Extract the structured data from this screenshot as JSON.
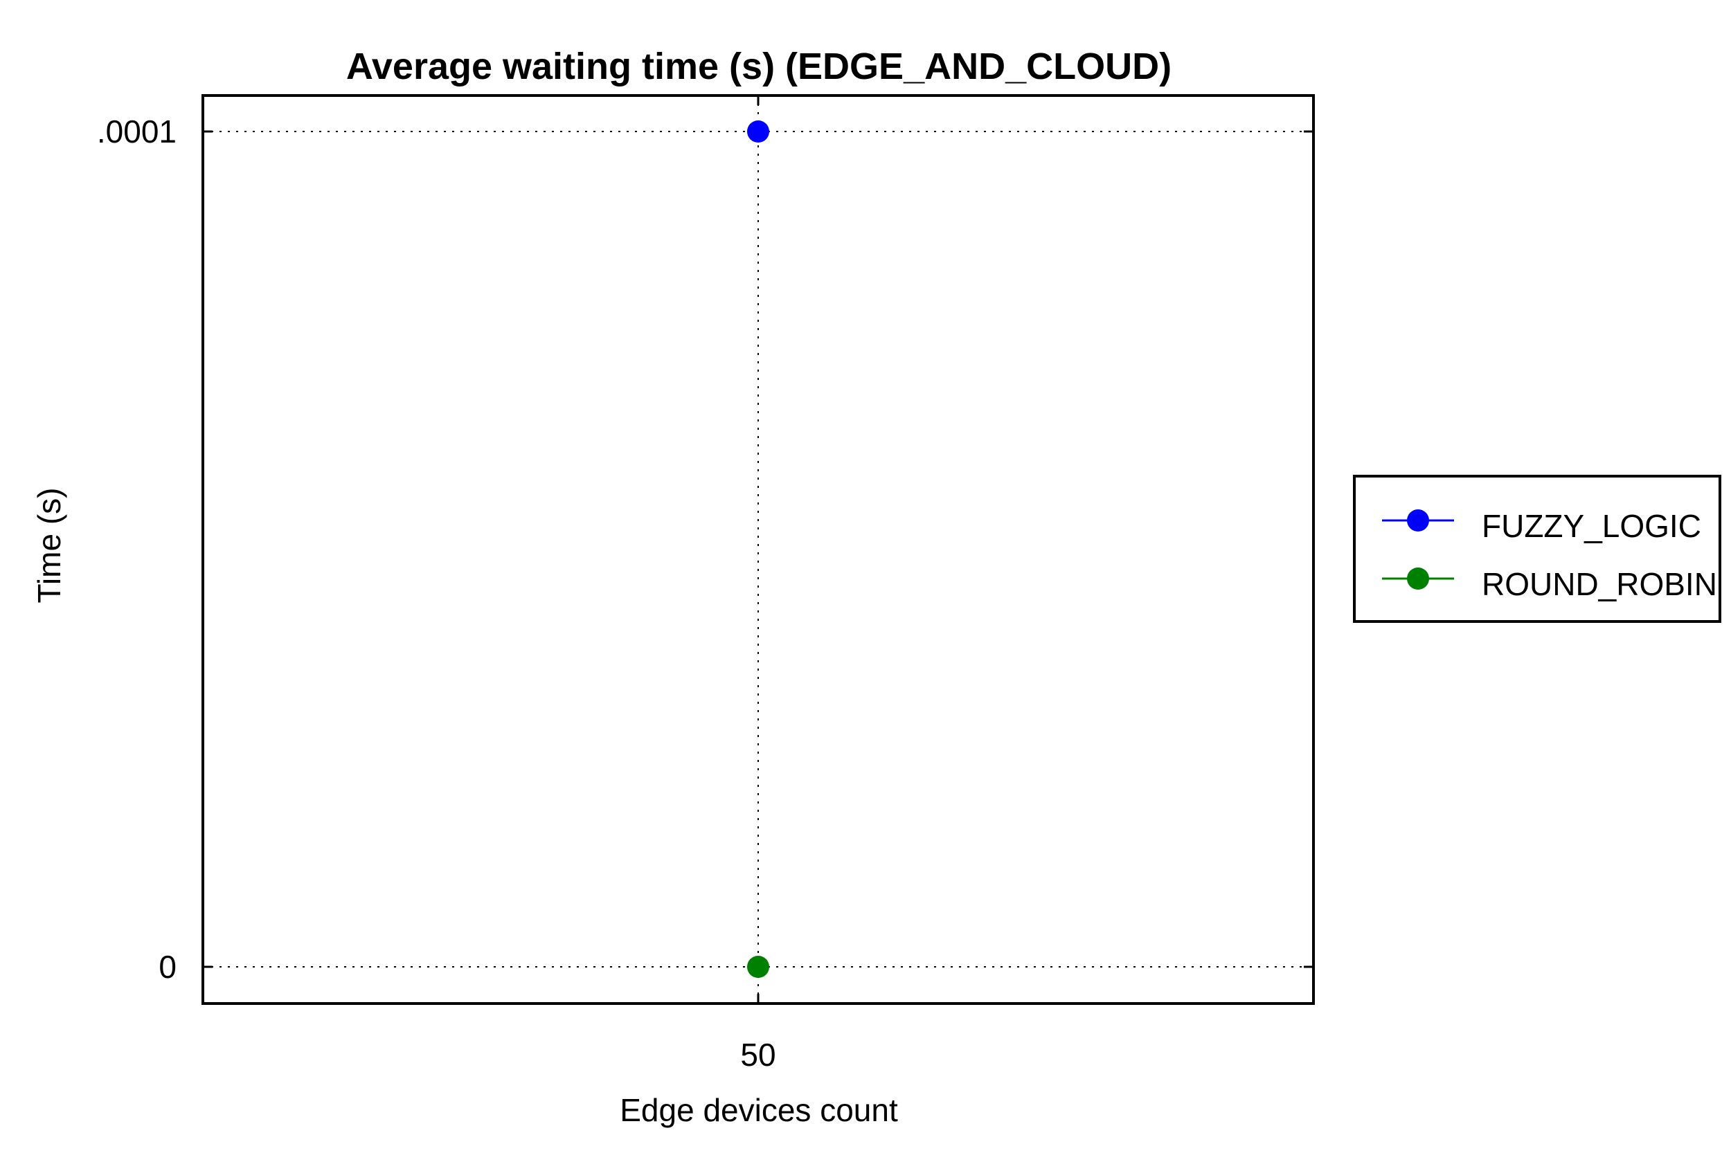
{
  "chart_data": {
    "type": "scatter",
    "title": "Average waiting time (s) (EDGE_AND_CLOUD)",
    "xlabel": "Edge devices count",
    "ylabel": "Time (s)",
    "x": [
      50
    ],
    "x_tick_labels": [
      "50"
    ],
    "y_tick_labels": [
      ".0001",
      "0"
    ],
    "y_ticks": [
      0.0001,
      0
    ],
    "ylim": [
      0,
      0.0001
    ],
    "grid": true,
    "legend_position": "right",
    "series": [
      {
        "name": "FUZZY_LOGIC",
        "color": "#0000ff",
        "values": [
          0.0001
        ]
      },
      {
        "name": "ROUND_ROBIN",
        "color": "#008000",
        "values": [
          0
        ]
      }
    ]
  }
}
